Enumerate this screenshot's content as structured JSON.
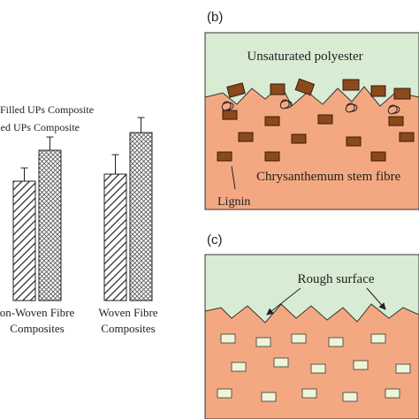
{
  "chart_data": {
    "type": "bar",
    "categories": [
      "on-Woven Fibre Composites",
      "Woven Fibre Composites"
    ],
    "series": [
      {
        "name": "Filled UPs Composite",
        "color": "#222222",
        "pattern": "hatch",
        "values": [
          135,
          143
        ],
        "errors": [
          15,
          22
        ]
      },
      {
        "name": "lled UPs Composite",
        "color": "#222222",
        "pattern": "cross",
        "values": [
          170,
          190
        ],
        "errors": [
          15,
          17
        ]
      }
    ],
    "ylim": [
      0,
      340
    ]
  },
  "panel_b": {
    "label": "(b)",
    "matrix": "Unsaturated polyester",
    "fibre": "Chrysanthemum stem fibre",
    "lignin": "Lignin"
  },
  "panel_c": {
    "label": "(c)",
    "surface": "Rough surface"
  }
}
